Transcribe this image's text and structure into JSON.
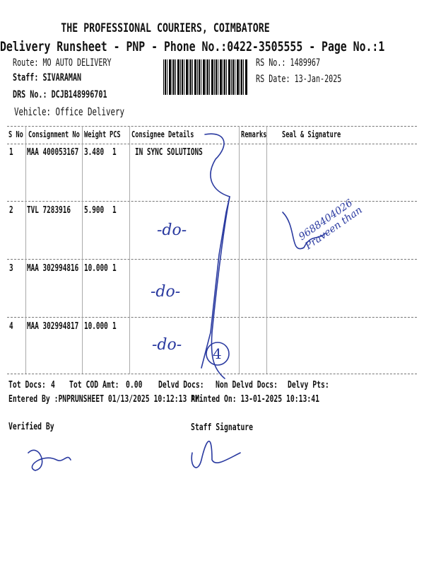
{
  "header": {
    "company": "THE PROFESSIONAL COURIERS, COIMBATORE",
    "subtitle": "Delivery Runsheet - PNP - Phone No.:0422-3505555 - Page No.:1",
    "route": "Route: MO AUTO DELIVERY",
    "staff": "Staff: SIVARAMAN",
    "drs_no": "DRS No.: DCJB148996701",
    "vehicle": "Vehicle: Office Delivery",
    "rs_no": "RS No.: 1489967",
    "rs_date": "RS Date: 13-Jan-2025"
  },
  "table": {
    "columns": [
      "S No",
      "Consignment No",
      "Weight",
      "PCS",
      "Consignee Details",
      "Remarks",
      "Seal & Signature"
    ],
    "rows": [
      {
        "sno": "1",
        "consignment": "MAA 400053167",
        "weight": "3.480",
        "pcs": "1",
        "consignee": "IN SYNC SOLUTIONS"
      },
      {
        "sno": "2",
        "consignment": "TVL 7283916",
        "weight": "5.900",
        "pcs": "1",
        "consignee": ""
      },
      {
        "sno": "3",
        "consignment": "MAA 302994816",
        "weight": "10.000",
        "pcs": "1",
        "consignee": ""
      },
      {
        "sno": "4",
        "consignment": "MAA 302994817",
        "weight": "10.000",
        "pcs": "1",
        "consignee": ""
      }
    ]
  },
  "handwriting": {
    "ditto": "-do-",
    "count": "4",
    "receiver_note": "9688404026 Praveen than"
  },
  "footer": {
    "tot_docs_label": "Tot Docs:",
    "tot_docs": "4",
    "tot_cod_label": "Tot COD Amt:",
    "tot_cod": "0.00",
    "delvd_docs_label": "Delvd Docs:",
    "non_delvd_docs_label": "Non Delvd Docs:",
    "delvy_pts_label": "Delvy Pts:",
    "entered_by": "Entered By :PNPRUNSHEET 01/13/2025 10:12:13 AM",
    "printed_on": "Printed On: 13-01-2025 10:13:41",
    "verified_by": "Verified By",
    "staff_signature": "Staff Signature"
  },
  "colors": {
    "ink": "#2a3aa0",
    "text": "#111111"
  }
}
